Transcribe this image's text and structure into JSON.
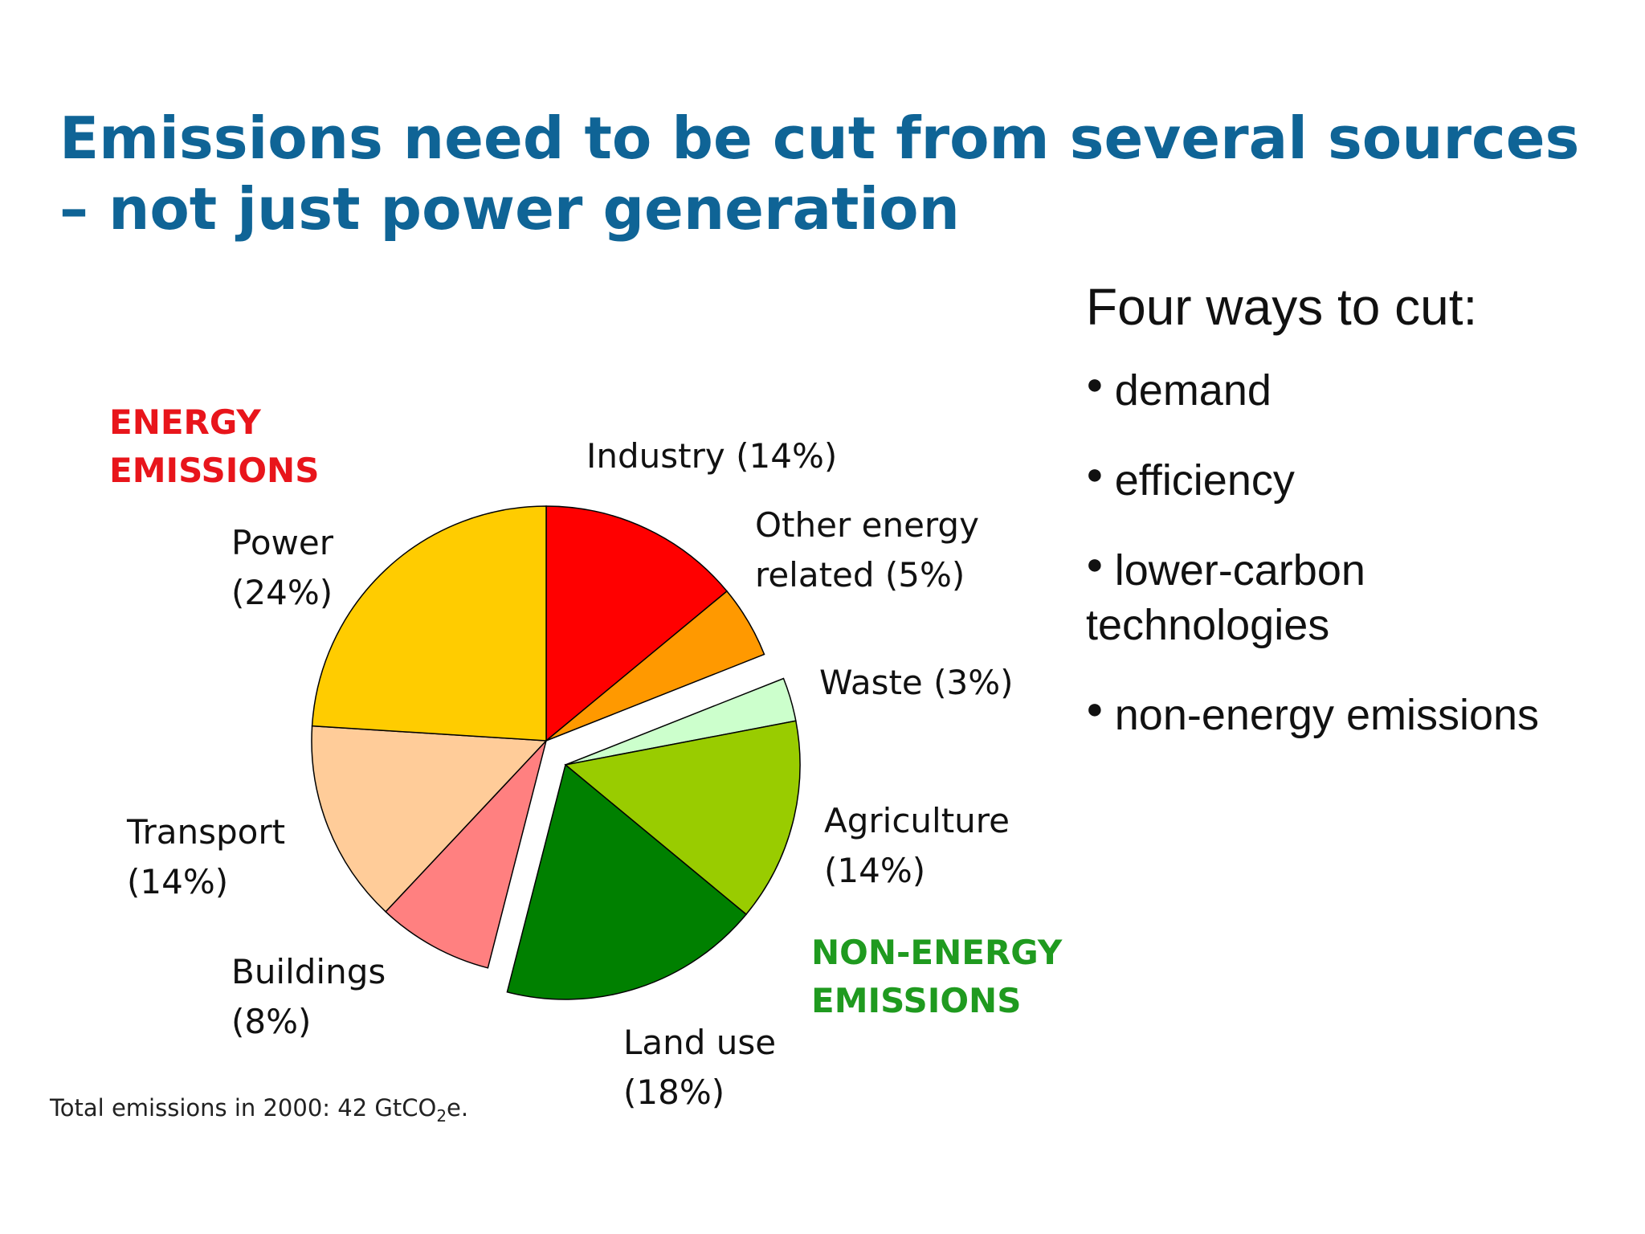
{
  "title": {
    "line1": "Emissions need to be cut from several sources",
    "line2": "– not just power generation"
  },
  "panel": {
    "heading": "Four ways to cut:",
    "bullets": [
      "demand",
      "efficiency",
      "lower-carbon technologies",
      "non-energy emissions"
    ]
  },
  "colors": {
    "title": "#0f6496",
    "energy_group": "#e8151b",
    "non_energy_group": "#1f9a1f"
  },
  "chart_data": {
    "type": "pie",
    "groups": [
      {
        "label_line1": "ENERGY",
        "label_line2": "EMISSIONS",
        "color": "#e8151b"
      },
      {
        "label_line1": "NON-ENERGY",
        "label_line2": "EMISSIONS",
        "color": "#1f9a1f"
      }
    ],
    "slices": [
      {
        "name": "Industry",
        "percent": 14,
        "label_line1": "Industry (14%)",
        "label_line2": "",
        "color": "#ff0000",
        "group": 0
      },
      {
        "name": "Other energy related",
        "percent": 5,
        "label_line1": "Other energy",
        "label_line2": "related (5%)",
        "color": "#ff9900",
        "group": 0
      },
      {
        "name": "Waste",
        "percent": 3,
        "label_line1": "Waste (3%)",
        "label_line2": "",
        "color": "#ccffcc",
        "group": 1
      },
      {
        "name": "Agriculture",
        "percent": 14,
        "label_line1": "Agriculture",
        "label_line2": "(14%)",
        "color": "#99cc00",
        "group": 1
      },
      {
        "name": "Land use",
        "percent": 18,
        "label_line1": "Land use",
        "label_line2": "(18%)",
        "color": "#008000",
        "group": 1
      },
      {
        "name": "Buildings",
        "percent": 8,
        "label_line1": "Buildings",
        "label_line2": "(8%)",
        "color": "#ff8080",
        "group": 0
      },
      {
        "name": "Transport",
        "percent": 14,
        "label_line1": "Transport",
        "label_line2": "(14%)",
        "color": "#ffcc99",
        "group": 0
      },
      {
        "name": "Power",
        "percent": 24,
        "label_line1": "Power",
        "label_line2": "(24%)",
        "color": "#ffcc00",
        "group": 0
      }
    ],
    "footnote": {
      "prefix": "Total emissions in 2000: 42 GtCO",
      "subscript": "2",
      "suffix": "e."
    }
  }
}
